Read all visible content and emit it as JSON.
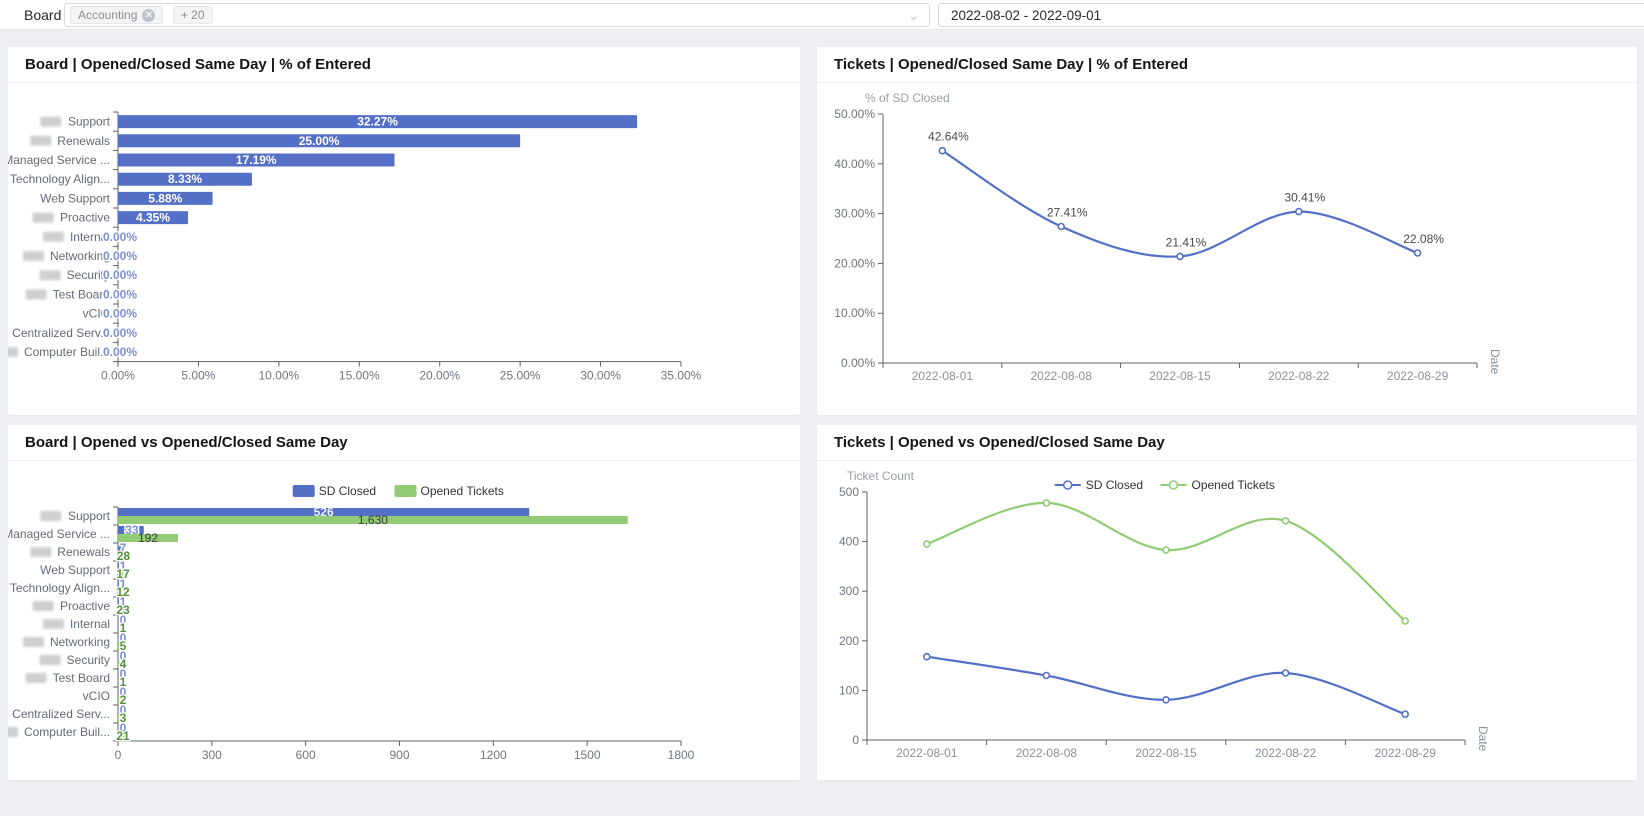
{
  "filter_bar": {
    "label": "Board",
    "tags": [
      {
        "text": "Accounting"
      },
      {
        "text": "+ 20"
      }
    ],
    "close_icon": "close-circle-icon",
    "caret_icon": "chevron-down-icon",
    "date_range": "2022-08-02 - 2022-09-01"
  },
  "colors": {
    "blue": "#5470c6",
    "green": "#91cc75"
  },
  "chart_data": [
    {
      "type": "bar",
      "orientation": "horizontal",
      "title": "Board | Opened/Closed Same Day | % of Entered",
      "categories": [
        "Support",
        "Renewals",
        "Managed Service ...",
        "Technology Align...",
        "Web Support",
        "Proactive",
        "Internal",
        "Networking",
        "Security",
        "Test Board",
        "vCIO",
        "Centralized Serv...",
        "Computer Buil..."
      ],
      "redacted": [
        true,
        true,
        false,
        false,
        false,
        true,
        true,
        true,
        true,
        true,
        false,
        false,
        true
      ],
      "values": [
        32.27,
        25.0,
        17.19,
        8.33,
        5.88,
        4.35,
        0,
        0,
        0,
        0,
        0,
        0,
        0
      ],
      "value_labels": [
        "32.27%",
        "25.00%",
        "17.19%",
        "8.33%",
        "5.88%",
        "4.35%",
        "0.00%",
        "0.00%",
        "0.00%",
        "0.00%",
        "0.00%",
        "0.00%",
        "0.00%"
      ],
      "xlim": [
        0,
        35
      ],
      "x_ticks": [
        "0.00%",
        "5.00%",
        "10.00%",
        "15.00%",
        "20.00%",
        "25.00%",
        "30.00%",
        "35.00%"
      ],
      "bar_color": "#5470c6",
      "grid": false
    },
    {
      "type": "line",
      "title": "Tickets | Opened/Closed Same Day | % of Entered",
      "y_name": "% of SD Closed",
      "x_name": "Date",
      "x": [
        "2022-08-01",
        "2022-08-08",
        "2022-08-15",
        "2022-08-22",
        "2022-08-29"
      ],
      "values": [
        42.64,
        27.41,
        21.41,
        30.41,
        22.08
      ],
      "point_labels": [
        "42.64%",
        "27.41%",
        "21.41%",
        "30.41%",
        "22.08%"
      ],
      "ylim": [
        0,
        50
      ],
      "y_ticks": [
        "0.00%",
        "10.00%",
        "20.00%",
        "30.00%",
        "40.00%",
        "50.00%"
      ],
      "line_color": "#5470c6",
      "smooth": true,
      "grid": false
    },
    {
      "type": "bar",
      "orientation": "horizontal",
      "title": "Board | Opened vs Opened/Closed Same Day",
      "categories": [
        "Support",
        "Managed Service ...",
        "Renewals",
        "Web Support",
        "Technology Align...",
        "Proactive",
        "Internal",
        "Networking",
        "Security",
        "Test Board",
        "vCIO",
        "Centralized Serv...",
        "Computer Buil..."
      ],
      "redacted": [
        true,
        false,
        true,
        false,
        false,
        true,
        true,
        true,
        true,
        true,
        false,
        false,
        true
      ],
      "series": [
        {
          "name": "SD Closed",
          "color": "#5470c6",
          "axis_max": 720,
          "values": [
            526,
            33,
            7,
            1,
            1,
            1,
            0,
            0,
            0,
            0,
            0,
            0,
            0
          ],
          "labels": [
            "526",
            "33",
            "7",
            "1",
            "1",
            "1",
            "0",
            "0",
            "0",
            "0",
            "0",
            "0",
            "0"
          ]
        },
        {
          "name": "Opened Tickets",
          "color": "#91cc75",
          "axis_max": 1800,
          "values": [
            1630,
            192,
            28,
            17,
            12,
            23,
            1,
            5,
            4,
            1,
            2,
            3,
            21
          ],
          "labels": [
            "1,630",
            "192",
            "28",
            "17",
            "12",
            "23",
            "1",
            "5",
            "4",
            "1",
            "2",
            "3",
            "21"
          ]
        }
      ],
      "xlim": [
        0,
        1800
      ],
      "x_ticks": [
        "0",
        "300",
        "600",
        "900",
        "1200",
        "1500",
        "1800"
      ],
      "legend": [
        "SD Closed",
        "Opened Tickets"
      ],
      "grid": false
    },
    {
      "type": "line",
      "title": "Tickets | Opened vs Opened/Closed Same Day",
      "y_name": "Ticket Count",
      "x_name": "Date",
      "x": [
        "2022-08-01",
        "2022-08-08",
        "2022-08-15",
        "2022-08-22",
        "2022-08-29"
      ],
      "series": [
        {
          "name": "SD Closed",
          "color": "#5470c6",
          "values": [
            168,
            130,
            81,
            135,
            52
          ]
        },
        {
          "name": "Opened Tickets",
          "color": "#91cc75",
          "values": [
            395,
            478,
            383,
            442,
            240
          ]
        }
      ],
      "ylim": [
        0,
        500
      ],
      "y_ticks": [
        "0",
        "100",
        "200",
        "300",
        "400",
        "500"
      ],
      "legend": [
        "SD Closed",
        "Opened Tickets"
      ],
      "smooth": true,
      "grid": false
    }
  ]
}
